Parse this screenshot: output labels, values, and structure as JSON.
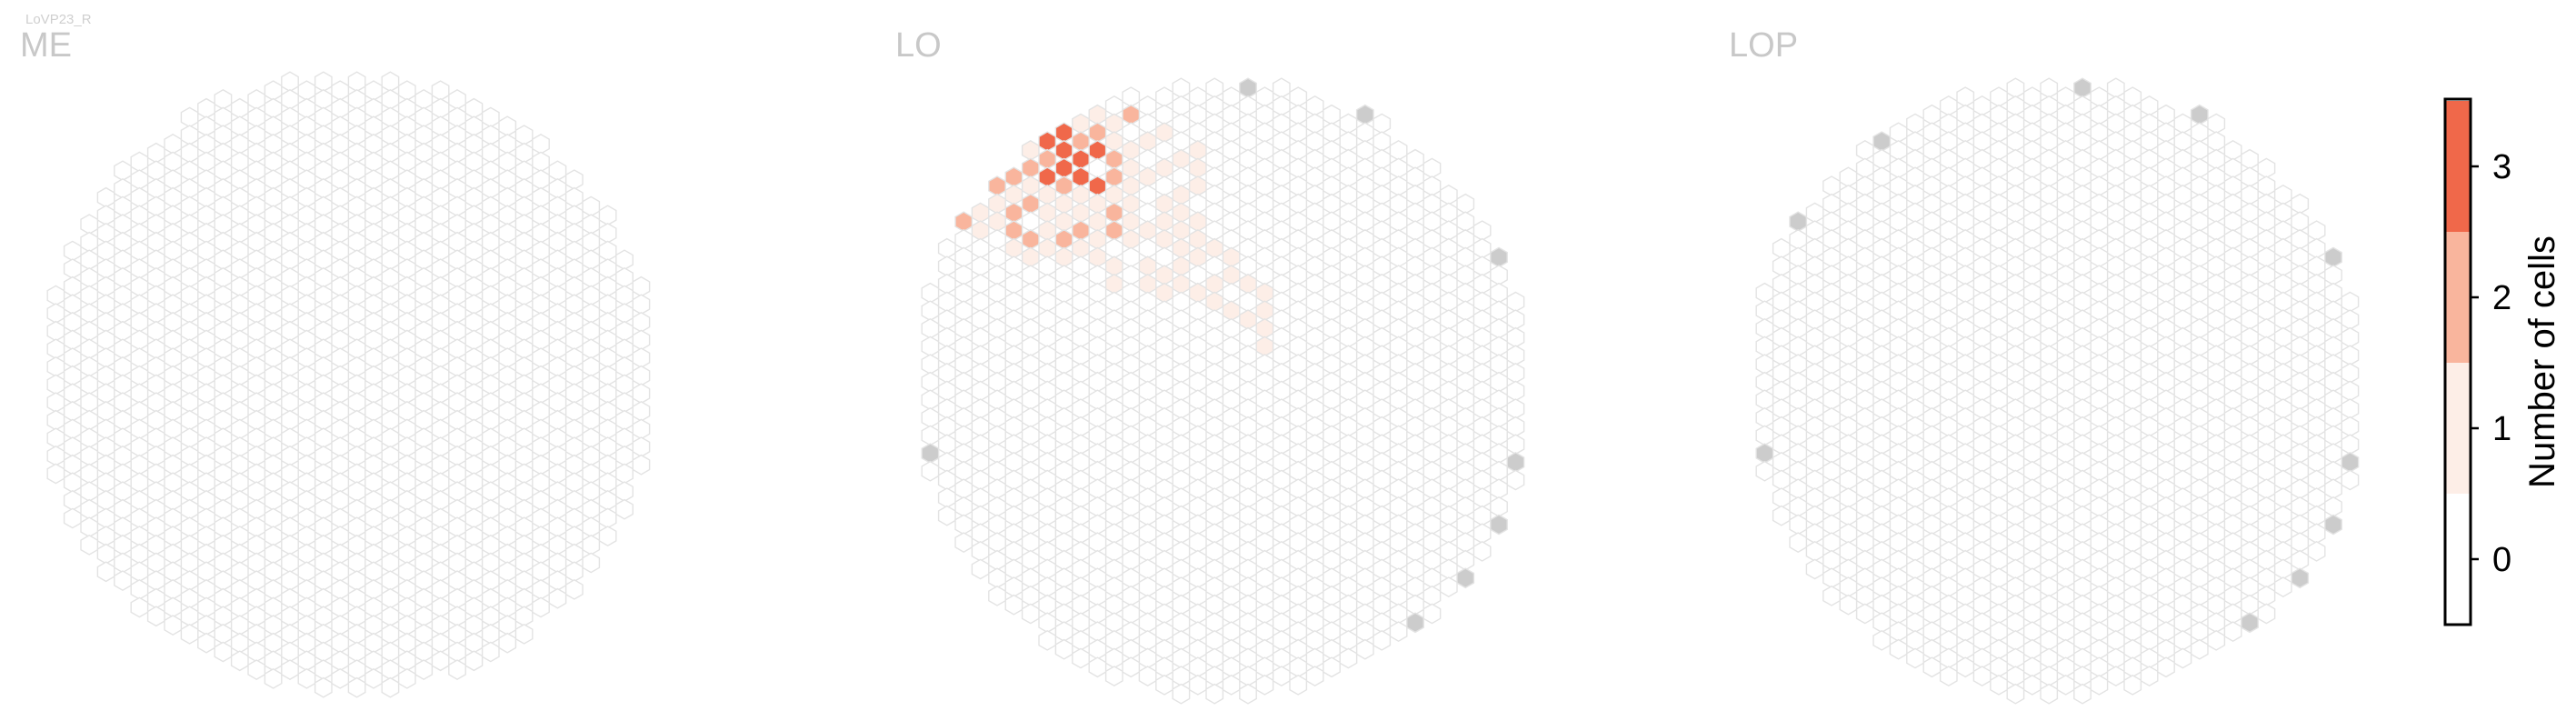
{
  "chart_data": {
    "type": "heatmap",
    "figure_title": "LoVP23_R",
    "panels": [
      {
        "label": "ME",
        "cells": [],
        "gray": []
      },
      {
        "label": "LO",
        "cells": [
          [
            8,
            3,
            3
          ],
          [
            9,
            3,
            3
          ],
          [
            7,
            4,
            3
          ],
          [
            9,
            4,
            3
          ],
          [
            10,
            4,
            3
          ],
          [
            11,
            4,
            3
          ],
          [
            8,
            5,
            3
          ],
          [
            9,
            5,
            3
          ],
          [
            10,
            5,
            3
          ],
          [
            11,
            6,
            3
          ],
          [
            8,
            7,
            3
          ],
          [
            6,
            3,
            2
          ],
          [
            7,
            2,
            2
          ],
          [
            7,
            3,
            2
          ],
          [
            10,
            3,
            2
          ],
          [
            11,
            3,
            2
          ],
          [
            12,
            3,
            2
          ],
          [
            5,
            4,
            2
          ],
          [
            6,
            4,
            2
          ],
          [
            8,
            4,
            2
          ],
          [
            12,
            4,
            2
          ],
          [
            3,
            5,
            2
          ],
          [
            6,
            5,
            2
          ],
          [
            7,
            5,
            2
          ],
          [
            12,
            5,
            2
          ],
          [
            1,
            6,
            2
          ],
          [
            3,
            6,
            2
          ],
          [
            5,
            6,
            2
          ],
          [
            9,
            6,
            2
          ],
          [
            1,
            7,
            2
          ],
          [
            2,
            7,
            2
          ],
          [
            3,
            7,
            2
          ],
          [
            6,
            7,
            2
          ],
          [
            7,
            7,
            2
          ],
          [
            3,
            8,
            2
          ],
          [
            10,
            8,
            2
          ],
          [
            12,
            8,
            2
          ],
          [
            6,
            8,
            2
          ],
          [
            7,
            9,
            2
          ],
          [
            9,
            9,
            2
          ],
          [
            12,
            7,
            2
          ],
          [
            4,
            2,
            2
          ],
          [
            13,
            2,
            2
          ],
          [
            4,
            1,
            1
          ],
          [
            5,
            1,
            1
          ],
          [
            6,
            1,
            1
          ],
          [
            7,
            1,
            1
          ],
          [
            8,
            1,
            1
          ],
          [
            9,
            1,
            1
          ],
          [
            10,
            1,
            1
          ],
          [
            11,
            1,
            1
          ],
          [
            3,
            2,
            1
          ],
          [
            5,
            2,
            1
          ],
          [
            6,
            2,
            1
          ],
          [
            8,
            2,
            1
          ],
          [
            9,
            2,
            1
          ],
          [
            10,
            2,
            1
          ],
          [
            11,
            2,
            1
          ],
          [
            12,
            2,
            1
          ],
          [
            2,
            3,
            1
          ],
          [
            3,
            3,
            1
          ],
          [
            4,
            3,
            1
          ],
          [
            5,
            3,
            1
          ],
          [
            12,
            3,
            1
          ],
          [
            14,
            3,
            1
          ],
          [
            15,
            3,
            1
          ],
          [
            2,
            4,
            1
          ],
          [
            3,
            4,
            1
          ],
          [
            4,
            4,
            1
          ],
          [
            7,
            4,
            1
          ],
          [
            13,
            4,
            1
          ],
          [
            16,
            4,
            1
          ],
          [
            17,
            4,
            1
          ],
          [
            2,
            5,
            1
          ],
          [
            4,
            5,
            1
          ],
          [
            5,
            5,
            1
          ],
          [
            13,
            5,
            1
          ],
          [
            14,
            5,
            1
          ],
          [
            15,
            5,
            1
          ],
          [
            17,
            5,
            1
          ],
          [
            2,
            6,
            1
          ],
          [
            4,
            6,
            1
          ],
          [
            6,
            6,
            1
          ],
          [
            7,
            6,
            1
          ],
          [
            8,
            6,
            1
          ],
          [
            10,
            6,
            1
          ],
          [
            12,
            6,
            1
          ],
          [
            13,
            6,
            1
          ],
          [
            16,
            6,
            1
          ],
          [
            17,
            6,
            1
          ],
          [
            4,
            7,
            1
          ],
          [
            5,
            7,
            1
          ],
          [
            8,
            7,
            1
          ],
          [
            9,
            7,
            1
          ],
          [
            10,
            7,
            1
          ],
          [
            11,
            7,
            1
          ],
          [
            13,
            7,
            1
          ],
          [
            15,
            7,
            1
          ],
          [
            16,
            7,
            1
          ],
          [
            1,
            8,
            1
          ],
          [
            2,
            8,
            1
          ],
          [
            4,
            8,
            1
          ],
          [
            5,
            8,
            1
          ],
          [
            8,
            8,
            1
          ],
          [
            9,
            8,
            1
          ],
          [
            11,
            8,
            1
          ],
          [
            13,
            8,
            1
          ],
          [
            14,
            8,
            1
          ],
          [
            15,
            8,
            1
          ],
          [
            16,
            8,
            1
          ],
          [
            17,
            8,
            1
          ],
          [
            6,
            9,
            1
          ],
          [
            8,
            9,
            1
          ],
          [
            10,
            9,
            1
          ],
          [
            11,
            9,
            1
          ],
          [
            13,
            9,
            1
          ],
          [
            15,
            9,
            1
          ],
          [
            16,
            9,
            1
          ],
          [
            17,
            9,
            1
          ],
          [
            18,
            9,
            1
          ],
          [
            7,
            10,
            1
          ],
          [
            9,
            10,
            1
          ],
          [
            11,
            10,
            1
          ],
          [
            12,
            10,
            1
          ],
          [
            14,
            10,
            1
          ],
          [
            16,
            10,
            1
          ],
          [
            17,
            10,
            1
          ],
          [
            19,
            10,
            1
          ],
          [
            12,
            11,
            1
          ],
          [
            14,
            11,
            1
          ],
          [
            15,
            11,
            1
          ],
          [
            16,
            11,
            1
          ],
          [
            18,
            11,
            1
          ],
          [
            19,
            11,
            1
          ],
          [
            20,
            11,
            1
          ],
          [
            15,
            12,
            1
          ],
          [
            17,
            12,
            1
          ],
          [
            18,
            12,
            1
          ],
          [
            21,
            12,
            1
          ],
          [
            19,
            13,
            1
          ],
          [
            20,
            13,
            1
          ],
          [
            21,
            13,
            1
          ],
          [
            21,
            14,
            1
          ],
          [
            21,
            15,
            1
          ]
        ],
        "gray": []
      },
      {
        "label": "LOP",
        "cells": [],
        "gray": []
      }
    ],
    "colorbar": {
      "label": "Number of cells",
      "ticks": [
        "0",
        "1",
        "2",
        "3"
      ],
      "levels": [
        {
          "value": 0,
          "color": "#ffffff"
        },
        {
          "value": 1,
          "color": "#fdeee7"
        },
        {
          "value": 2,
          "color": "#f9b59d"
        },
        {
          "value": 3,
          "color": "#f0684a"
        }
      ]
    },
    "colors": {
      "empty_stroke": "#e3e3e3",
      "boundary_fill": "#cccccc",
      "label_gray": "#c8c8c8"
    }
  }
}
